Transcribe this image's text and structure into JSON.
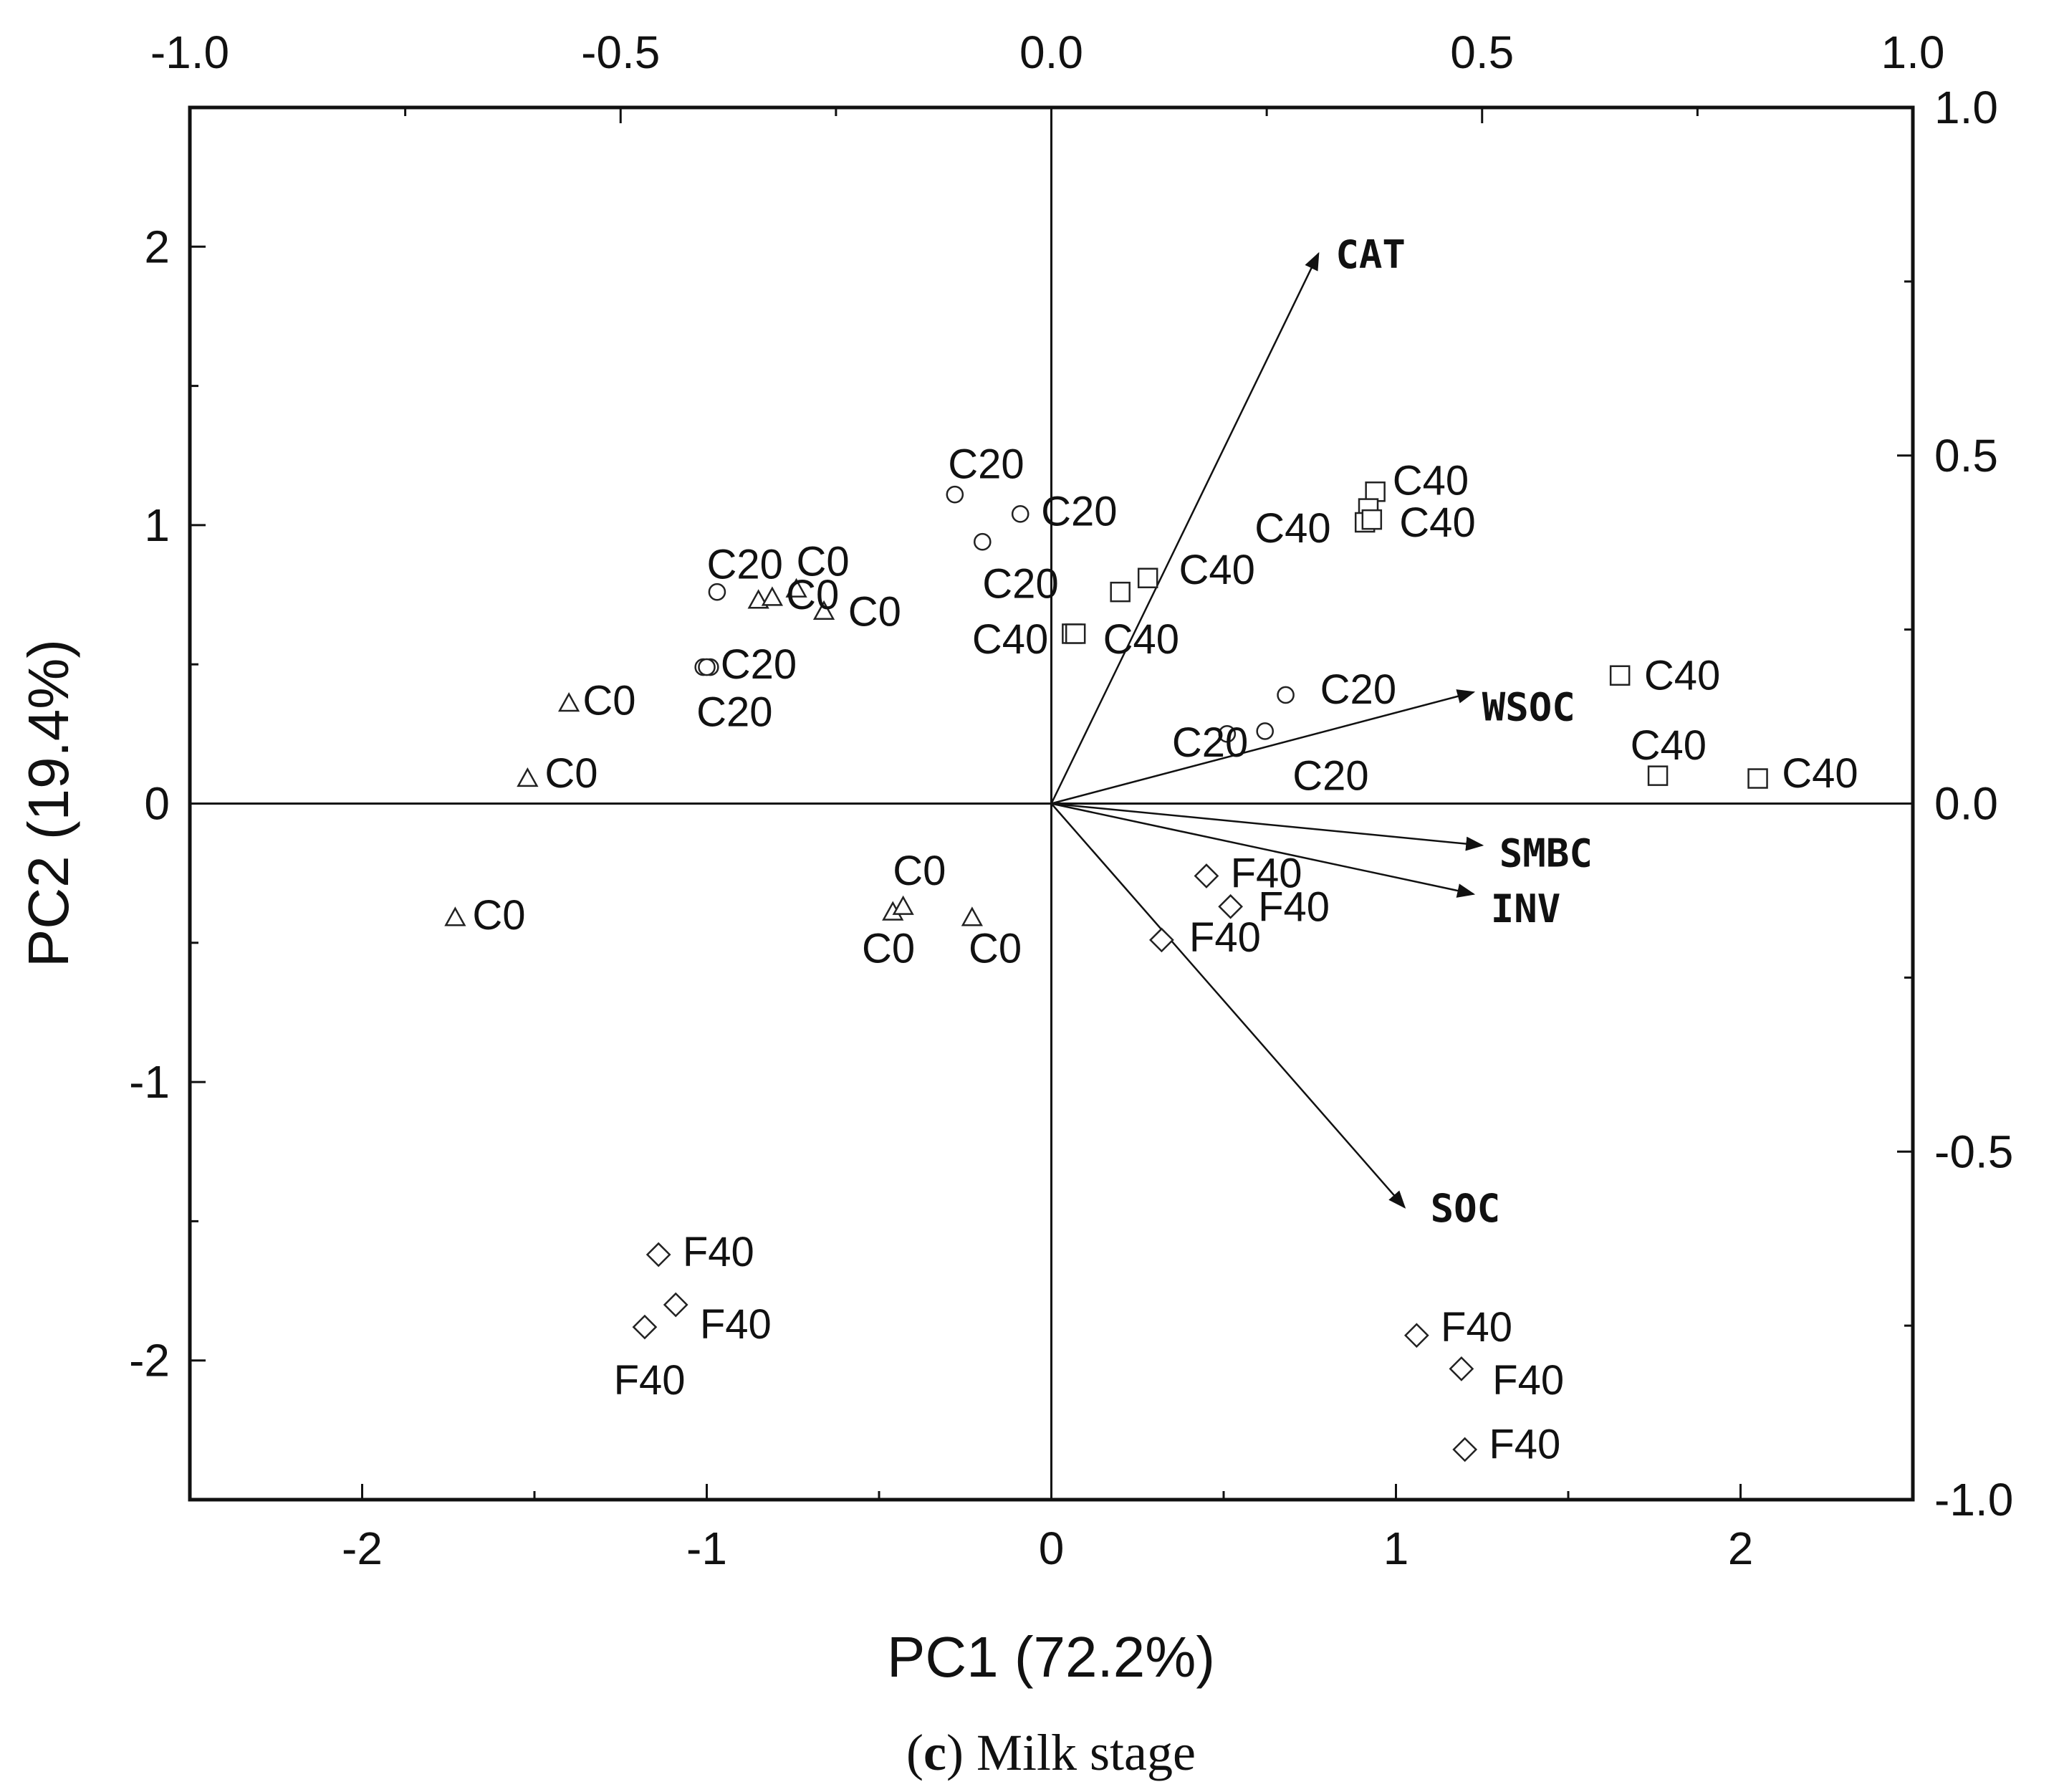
{
  "chart_data": {
    "type": "scatter",
    "subtype": "pca-biplot",
    "title": "",
    "xlabel": "PC1 (72.2%)",
    "ylabel": "PC2 (19.4%)",
    "xlim": [
      -2.5,
      2.5
    ],
    "ylim": [
      -2.5,
      2.5
    ],
    "x_ticks": [
      "-2",
      "-1",
      "0",
      "1",
      "2"
    ],
    "y_ticks": [
      "-2",
      "-1",
      "0",
      "1",
      "2"
    ],
    "top_axis": {
      "range": [
        -1.0,
        1.0
      ],
      "ticks": [
        "-1.0",
        "-0.5",
        "0.0",
        "0.5",
        "1.0"
      ]
    },
    "right_axis": {
      "range": [
        -1.0,
        1.0
      ],
      "ticks": [
        "-1.0",
        "-0.5",
        "0.0",
        "0.5",
        "1.0"
      ]
    },
    "grid": false,
    "series": [
      {
        "name": "C0",
        "marker": "triangle",
        "points": [
          {
            "x": -1.4,
            "y": 0.36,
            "label": "C0",
            "lx": -1.36,
            "ly": 0.37
          },
          {
            "x": -1.52,
            "y": 0.09,
            "label": "C0",
            "lx": -1.47,
            "ly": 0.11
          },
          {
            "x": -1.73,
            "y": -0.41,
            "label": "C0",
            "lx": -1.68,
            "ly": -0.4
          },
          {
            "x": -0.85,
            "y": 0.73,
            "label": "",
            "lx": 0,
            "ly": 0
          },
          {
            "x": -0.81,
            "y": 0.74,
            "label": "C0",
            "lx": -0.77,
            "ly": 0.75
          },
          {
            "x": -0.66,
            "y": 0.69,
            "label": "C0",
            "lx": -0.59,
            "ly": 0.69
          },
          {
            "x": -0.74,
            "y": 0.77,
            "label": "C0",
            "lx": -0.74,
            "ly": 0.87
          },
          {
            "x": -0.46,
            "y": -0.39,
            "label": "C0",
            "lx": -0.55,
            "ly": -0.52
          },
          {
            "x": -0.43,
            "y": -0.37,
            "label": "C0",
            "lx": -0.46,
            "ly": -0.24
          },
          {
            "x": -0.23,
            "y": -0.41,
            "label": "C0",
            "lx": -0.24,
            "ly": -0.52
          }
        ]
      },
      {
        "name": "C20",
        "marker": "circle",
        "points": [
          {
            "x": -0.97,
            "y": 0.76,
            "label": "C20",
            "lx": -1.0,
            "ly": 0.86
          },
          {
            "x": -1.01,
            "y": 0.49,
            "label": "",
            "lx": 0,
            "ly": 0
          },
          {
            "x": -0.99,
            "y": 0.49,
            "label": "C20",
            "lx": -0.96,
            "ly": 0.5
          },
          {
            "x": -1.0,
            "y": 0.49,
            "label": "C20",
            "lx": -1.03,
            "ly": 0.33
          },
          {
            "x": -0.28,
            "y": 1.11,
            "label": "C20",
            "lx": -0.3,
            "ly": 1.22
          },
          {
            "x": -0.09,
            "y": 1.04,
            "label": "C20",
            "lx": -0.03,
            "ly": 1.05
          },
          {
            "x": -0.2,
            "y": 0.94,
            "label": "C20",
            "lx": -0.2,
            "ly": 0.79
          },
          {
            "x": 0.68,
            "y": 0.39,
            "label": "C20",
            "lx": 0.78,
            "ly": 0.41
          },
          {
            "x": 0.51,
            "y": 0.25,
            "label": "C20",
            "lx": 0.35,
            "ly": 0.22
          },
          {
            "x": 0.62,
            "y": 0.26,
            "label": "C20",
            "lx": 0.7,
            "ly": 0.1
          }
        ]
      },
      {
        "name": "C40",
        "marker": "square",
        "points": [
          {
            "x": 0.94,
            "y": 1.12,
            "label": "C40",
            "lx": 0.99,
            "ly": 1.16
          },
          {
            "x": 0.92,
            "y": 1.06,
            "label": "",
            "lx": 0,
            "ly": 0
          },
          {
            "x": 0.91,
            "y": 1.01,
            "label": "C40",
            "lx": 0.59,
            "ly": 0.99
          },
          {
            "x": 0.93,
            "y": 1.02,
            "label": "C40",
            "lx": 1.01,
            "ly": 1.01
          },
          {
            "x": 0.2,
            "y": 0.76,
            "label": "",
            "lx": 0,
            "ly": 0
          },
          {
            "x": 0.28,
            "y": 0.81,
            "label": "C40",
            "lx": 0.37,
            "ly": 0.84
          },
          {
            "x": 0.06,
            "y": 0.61,
            "label": "C40",
            "lx": -0.23,
            "ly": 0.59
          },
          {
            "x": 0.07,
            "y": 0.61,
            "label": "C40",
            "lx": 0.15,
            "ly": 0.59
          },
          {
            "x": 1.65,
            "y": 0.46,
            "label": "C40",
            "lx": 1.72,
            "ly": 0.46
          },
          {
            "x": 1.76,
            "y": 0.1,
            "label": "C40",
            "lx": 1.68,
            "ly": 0.21
          },
          {
            "x": 2.05,
            "y": 0.09,
            "label": "C40",
            "lx": 2.12,
            "ly": 0.11
          }
        ]
      },
      {
        "name": "F40",
        "marker": "diamond",
        "points": [
          {
            "x": 0.45,
            "y": -0.26,
            "label": "F40",
            "lx": 0.52,
            "ly": -0.25
          },
          {
            "x": 0.52,
            "y": -0.37,
            "label": "F40",
            "lx": 0.6,
            "ly": -0.37
          },
          {
            "x": 0.32,
            "y": -0.49,
            "label": "F40",
            "lx": 0.4,
            "ly": -0.48
          },
          {
            "x": -1.14,
            "y": -1.62,
            "label": "F40",
            "lx": -1.07,
            "ly": -1.61
          },
          {
            "x": -1.09,
            "y": -1.8,
            "label": "F40",
            "lx": -1.02,
            "ly": -1.87
          },
          {
            "x": -1.18,
            "y": -1.88,
            "label": "F40",
            "lx": -1.27,
            "ly": -2.07
          },
          {
            "x": 1.06,
            "y": -1.91,
            "label": "F40",
            "lx": 1.13,
            "ly": -1.88
          },
          {
            "x": 1.19,
            "y": -2.03,
            "label": "F40",
            "lx": 1.28,
            "ly": -2.07
          },
          {
            "x": 1.2,
            "y": -2.32,
            "label": "F40",
            "lx": 1.27,
            "ly": -2.3
          }
        ]
      }
    ],
    "loadings": [
      {
        "name": "CAT",
        "x": 0.31,
        "y": 0.79,
        "lx": 0.33,
        "ly": 0.79
      },
      {
        "name": "WSOC",
        "x": 0.49,
        "y": 0.16,
        "lx": 0.5,
        "ly": 0.14
      },
      {
        "name": "SMBC",
        "x": 0.5,
        "y": -0.06,
        "lx": 0.52,
        "ly": -0.07
      },
      {
        "name": "INV",
        "x": 0.49,
        "y": -0.13,
        "lx": 0.51,
        "ly": -0.15
      },
      {
        "name": "SOC",
        "x": 0.41,
        "y": -0.58,
        "lx": 0.44,
        "ly": -0.58
      }
    ]
  },
  "caption": {
    "prefix": "(",
    "letter": "c",
    "suffix": ") Milk stage"
  }
}
